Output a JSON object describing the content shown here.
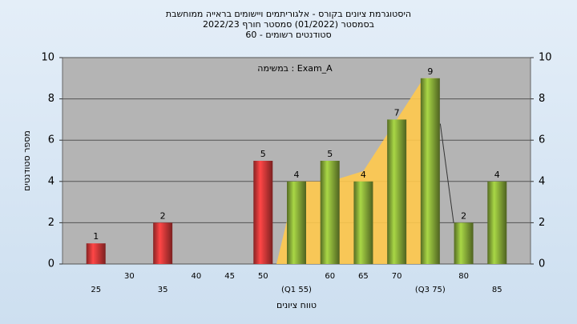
{
  "chart_data": {
    "type": "bar",
    "title": [
      "היסטוגרמת ציונים בקורס - אלגוריתמים ויישומים בראייה ממוחשבת",
      "בסמסטר  (01/2022)  סמסטר חורף 2022/23",
      "סטודנטים רשומים - 60"
    ],
    "annotation": "במשימה : Exam_A",
    "x_label": "טווח ציונים",
    "y_label": "מספר סטודנטים",
    "x": [
      25,
      35,
      50,
      55,
      60,
      65,
      70,
      75,
      80,
      85
    ],
    "values": [
      1,
      2,
      5,
      4,
      5,
      4,
      7,
      9,
      2,
      4
    ],
    "colors": [
      "#e03a3a",
      "#e03a3a",
      "#e03a3a",
      "#8db33a",
      "#8db33a",
      "#8db33a",
      "#8db33a",
      "#8db33a",
      "#8db33a",
      "#8db33a"
    ],
    "area": {
      "color": "#ffc94d",
      "x": [
        52,
        55,
        60,
        65,
        70,
        74,
        76,
        76
      ],
      "values": [
        0,
        4,
        4,
        4.5,
        7,
        9,
        9,
        0
      ]
    },
    "line": {
      "color": "#333333",
      "x": [
        76.5,
        78.5
      ],
      "values": [
        6.8,
        2
      ]
    },
    "xlim": [
      20,
      90
    ],
    "xticks": [
      25,
      30,
      35,
      40,
      45,
      50,
      {
        "value": 55,
        "label": "(Q1 55)"
      },
      60,
      65,
      70,
      {
        "value": 75,
        "label": "(Q3 75)"
      },
      80,
      85
    ],
    "ylim": [
      0,
      10
    ],
    "yticks": [
      0,
      2,
      4,
      6,
      8,
      10
    ],
    "y2lim": [
      0,
      10
    ],
    "y2ticks": [
      0,
      2,
      4,
      6,
      8,
      10
    ],
    "grid": true
  }
}
